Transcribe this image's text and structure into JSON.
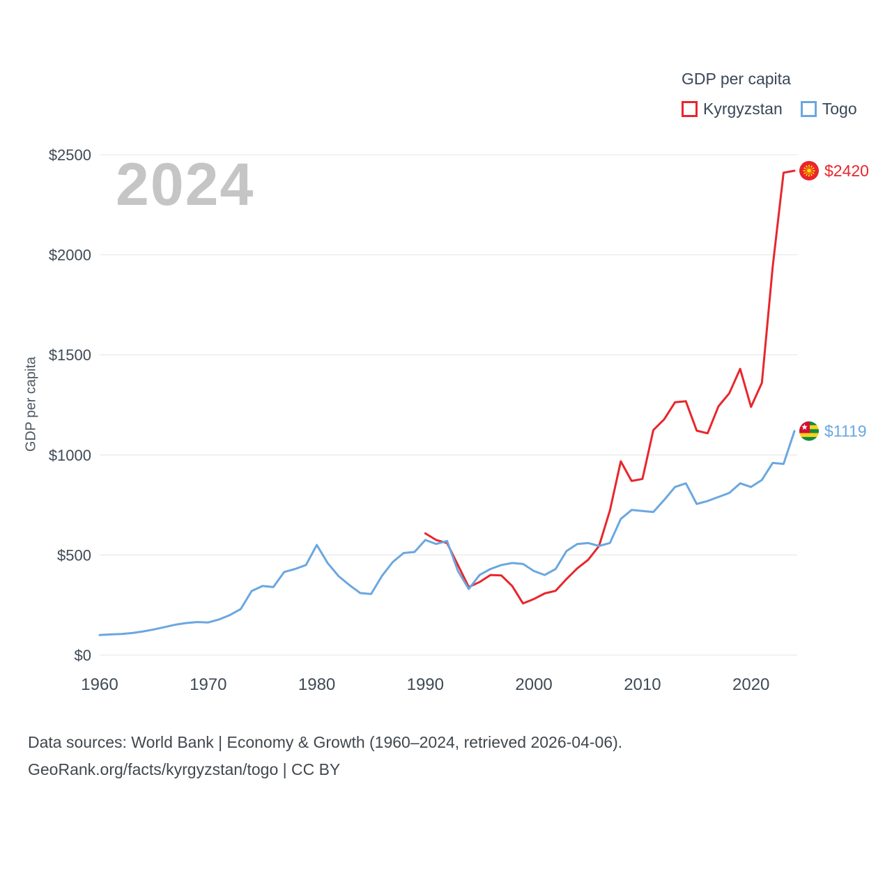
{
  "page": {
    "watermark": "2024",
    "footer_line1": "Data sources: World Bank | Economy & Growth (1960–2024, retrieved 2026-04-06).",
    "footer_line2": "GeoRank.org/facts/kyrgyzstan/togo | CC BY"
  },
  "legend": {
    "title": "GDP per capita",
    "items": [
      {
        "label": "Kyrgyzstan",
        "color": "#e8262c"
      },
      {
        "label": "Togo",
        "color": "#6aa7e0"
      }
    ]
  },
  "chart_data": {
    "type": "line",
    "title": "GDP per capita",
    "xlabel": "",
    "ylabel": "GDP per capita",
    "xlim": [
      1960,
      2024
    ],
    "ylim": [
      0,
      2500
    ],
    "x_ticks": [
      1960,
      1970,
      1980,
      1990,
      2000,
      2010,
      2020
    ],
    "y_ticks": [
      0,
      500,
      1000,
      1500,
      2000,
      2500
    ],
    "y_tick_labels": [
      "$0",
      "$500",
      "$1000",
      "$1500",
      "$2000",
      "$2500"
    ],
    "grid": "horizontal",
    "legend_position": "top-right",
    "colors": {
      "grid": "#e9e9e9",
      "tick_text": "#3f4a56",
      "kyrgyzstan_red": "#e8262c",
      "togo_blue": "#6aa7e0"
    },
    "series": [
      {
        "name": "Kyrgyzstan",
        "color": "#e8262c",
        "end_label": "$2420",
        "end_value": 2420,
        "flag": "kyrgyzstan",
        "x": [
          1990,
          1991,
          1992,
          1993,
          1994,
          1995,
          1996,
          1997,
          1998,
          1999,
          2000,
          2001,
          2002,
          2003,
          2004,
          2005,
          2006,
          2007,
          2008,
          2009,
          2010,
          2011,
          2012,
          2013,
          2014,
          2015,
          2016,
          2017,
          2018,
          2019,
          2020,
          2021,
          2022,
          2023,
          2024
        ],
        "values": [
          608,
          575,
          560,
          450,
          340,
          365,
          400,
          398,
          345,
          258,
          280,
          308,
          321,
          380,
          433,
          476,
          545,
          722,
          968,
          870,
          880,
          1124,
          1178,
          1263,
          1268,
          1121,
          1108,
          1243,
          1308,
          1430,
          1240,
          1360,
          1940,
          2410,
          2420
        ]
      },
      {
        "name": "Togo",
        "color": "#6aa7e0",
        "end_label": "$1119",
        "end_value": 1119,
        "flag": "togo",
        "x": [
          1960,
          1961,
          1962,
          1963,
          1964,
          1965,
          1966,
          1967,
          1968,
          1969,
          1970,
          1971,
          1972,
          1973,
          1974,
          1975,
          1976,
          1977,
          1978,
          1979,
          1980,
          1981,
          1982,
          1983,
          1984,
          1985,
          1986,
          1987,
          1988,
          1989,
          1990,
          1991,
          1992,
          1993,
          1994,
          1995,
          1996,
          1997,
          1998,
          1999,
          2000,
          2001,
          2002,
          2003,
          2004,
          2005,
          2006,
          2007,
          2008,
          2009,
          2010,
          2011,
          2012,
          2013,
          2014,
          2015,
          2016,
          2017,
          2018,
          2019,
          2020,
          2021,
          2022,
          2023,
          2024
        ],
        "values": [
          100,
          103,
          105,
          110,
          118,
          128,
          140,
          152,
          160,
          165,
          163,
          178,
          200,
          230,
          320,
          345,
          340,
          415,
          430,
          450,
          550,
          460,
          395,
          350,
          310,
          305,
          395,
          465,
          510,
          515,
          575,
          555,
          570,
          420,
          330,
          400,
          430,
          450,
          460,
          455,
          420,
          400,
          430,
          520,
          555,
          560,
          545,
          560,
          680,
          725,
          720,
          715,
          775,
          840,
          858,
          755,
          770,
          790,
          810,
          858,
          840,
          875,
          960,
          955,
          1119
        ]
      }
    ]
  }
}
